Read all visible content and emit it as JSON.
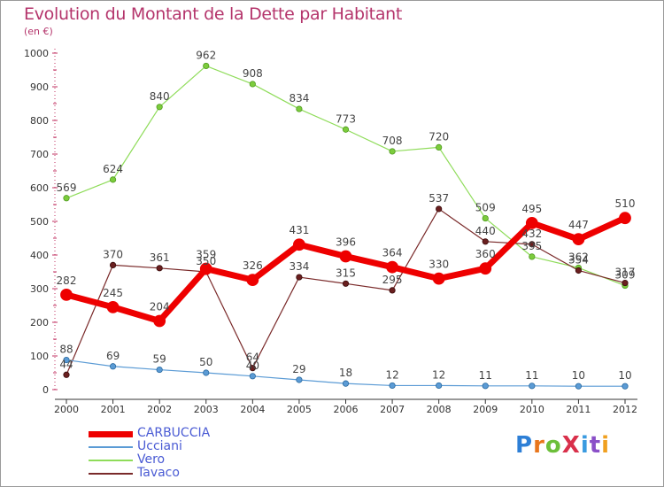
{
  "title": "Evolution du Montant de la Dette par Habitant",
  "subtitle": "(en €)",
  "brand": "ProXiti",
  "chart_data": {
    "type": "line",
    "title": "Evolution du Montant de la Dette par Habitant",
    "ylabel": "(en €)",
    "xlabel": "",
    "x": [
      "2000",
      "2001",
      "2002",
      "2003",
      "2004",
      "2005",
      "2006",
      "2007",
      "2008",
      "2009",
      "2010",
      "2011",
      "2012"
    ],
    "ylim": [
      0,
      1000
    ],
    "yticks": [
      0,
      100,
      200,
      300,
      400,
      500,
      600,
      700,
      800,
      900,
      1000
    ],
    "grid": false,
    "legend": "bottom-left",
    "series": [
      {
        "name": "CARBUCCIA",
        "color": "#ee0000",
        "values": [
          282,
          245,
          204,
          359,
          326,
          431,
          396,
          364,
          330,
          360,
          495,
          447,
          510
        ]
      },
      {
        "name": "Ucciani",
        "color": "#5b9bd5",
        "values": [
          88,
          69,
          59,
          50,
          40,
          29,
          18,
          12,
          12,
          11,
          11,
          10,
          10
        ]
      },
      {
        "name": "Vero",
        "color": "#8fdc5a",
        "values": [
          569,
          624,
          840,
          962,
          908,
          834,
          773,
          708,
          720,
          509,
          395,
          362,
          309
        ]
      },
      {
        "name": "Tavaco",
        "color": "#7a2a2a",
        "values": [
          44,
          370,
          361,
          350,
          64,
          334,
          315,
          295,
          537,
          440,
          432,
          354,
          317
        ]
      }
    ]
  }
}
